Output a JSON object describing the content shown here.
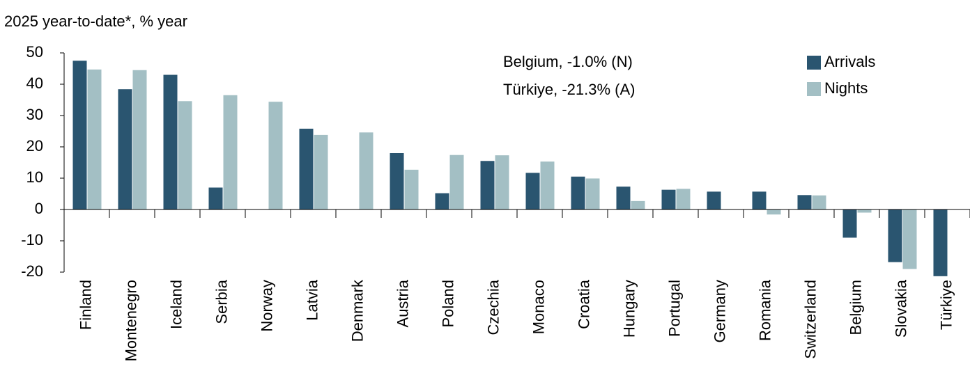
{
  "chart_data": {
    "type": "bar",
    "title": "2025 year-to-date*, % year",
    "annotations": [
      "Belgium, -1.0% (N)",
      "Türkiye, -21.3% (A)"
    ],
    "categories": [
      "Finland",
      "Montenegro",
      "Iceland",
      "Serbia",
      "Norway",
      "Latvia",
      "Denmark",
      "Austria",
      "Poland",
      "Czechia",
      "Monaco",
      "Croatia",
      "Hungary",
      "Portugal",
      "Germany",
      "Romania",
      "Switzerland",
      "Belgium",
      "Slovakia",
      "Türkiye"
    ],
    "series": [
      {
        "name": "Arrivals",
        "color": "#2a5570",
        "values": [
          47.5,
          38.4,
          43,
          7,
          null,
          25.8,
          null,
          18,
          5.2,
          15.5,
          11.7,
          10.5,
          7.3,
          6.3,
          5.7,
          5.7,
          4.6,
          -9,
          -16.8,
          -21.3
        ]
      },
      {
        "name": "Nights",
        "color": "#a3bfc4",
        "values": [
          44.7,
          44.5,
          34.6,
          36.5,
          34.4,
          23.8,
          24.6,
          12.7,
          17.4,
          17.3,
          15.3,
          9.9,
          2.7,
          6.6,
          null,
          -1.6,
          4.5,
          -1,
          -19,
          null
        ]
      }
    ],
    "ylim": [
      -20,
      50
    ],
    "yticks": [
      -20,
      -10,
      0,
      10,
      20,
      30,
      40,
      50
    ]
  }
}
